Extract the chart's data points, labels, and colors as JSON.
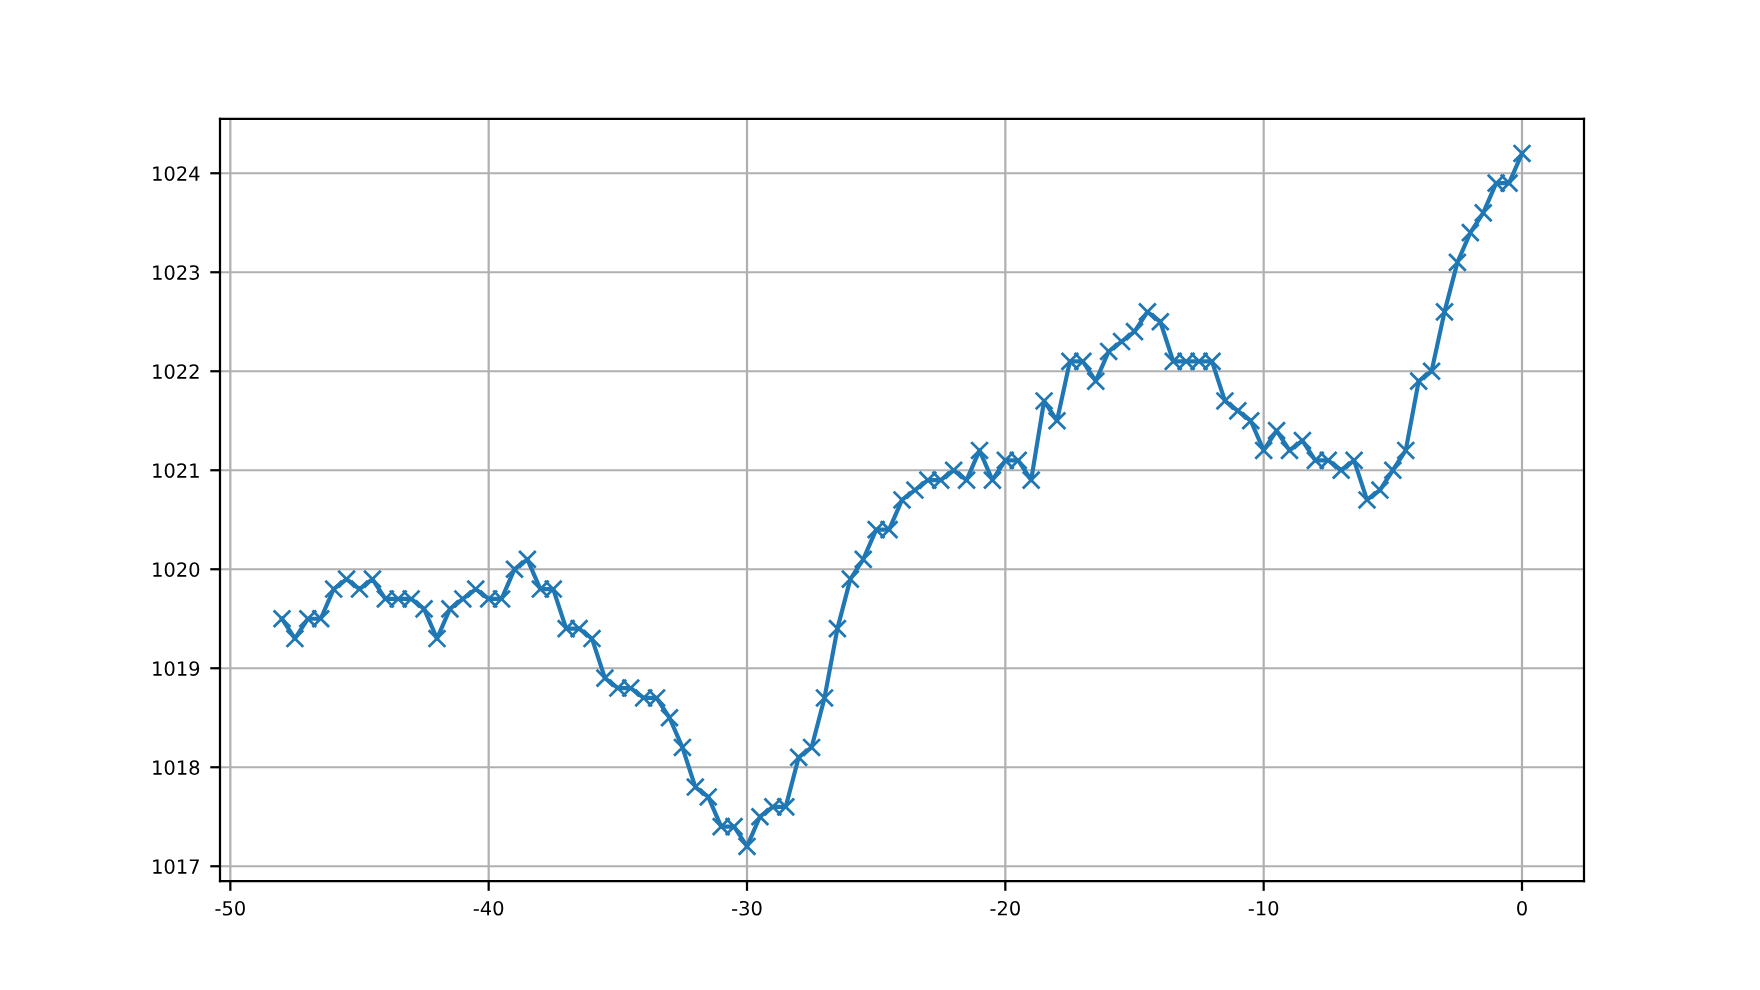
{
  "chart_data": {
    "type": "line",
    "marker": "cross",
    "grid": true,
    "x": [
      -48,
      -47.5,
      -47,
      -46.5,
      -46,
      -45.5,
      -45,
      -44.5,
      -44,
      -43.5,
      -43,
      -42.5,
      -42,
      -41.5,
      -41,
      -40.5,
      -40,
      -39.5,
      -39,
      -38.5,
      -38,
      -37.5,
      -37,
      -36.5,
      -36,
      -35.5,
      -35,
      -34.5,
      -34,
      -33.5,
      -33,
      -32.5,
      -32,
      -31.5,
      -31,
      -30.5,
      -30,
      -29.5,
      -29,
      -28.5,
      -28,
      -27.5,
      -27,
      -26.5,
      -26,
      -25.5,
      -25,
      -24.5,
      -24,
      -23.5,
      -23,
      -22.5,
      -22,
      -21.5,
      -21,
      -20.5,
      -20,
      -19.5,
      -19,
      -18.5,
      -18,
      -17.5,
      -17,
      -16.5,
      -16,
      -15.5,
      -15,
      -14.5,
      -14,
      -13.5,
      -13,
      -12.5,
      -12,
      -11.5,
      -11,
      -10.5,
      -10,
      -9.5,
      -9,
      -8.5,
      -8,
      -7.5,
      -7,
      -6.5,
      -6,
      -5.5,
      -5,
      -4.5,
      -4,
      -3.5,
      -3,
      -2.5,
      -2,
      -1.5,
      -1,
      -0.5,
      0
    ],
    "series": [
      {
        "color": "#1f77b4",
        "values": [
          1019.5,
          1019.3,
          1019.5,
          1019.5,
          1019.8,
          1019.9,
          1019.8,
          1019.9,
          1019.7,
          1019.7,
          1019.7,
          1019.6,
          1019.3,
          1019.6,
          1019.7,
          1019.8,
          1019.7,
          1019.7,
          1020.0,
          1020.1,
          1019.8,
          1019.8,
          1019.4,
          1019.4,
          1019.3,
          1018.9,
          1018.8,
          1018.8,
          1018.7,
          1018.7,
          1018.5,
          1018.2,
          1017.8,
          1017.7,
          1017.4,
          1017.4,
          1017.2,
          1017.5,
          1017.6,
          1017.6,
          1018.1,
          1018.2,
          1018.7,
          1019.4,
          1019.9,
          1020.1,
          1020.4,
          1020.4,
          1020.7,
          1020.8,
          1020.9,
          1020.9,
          1021.0,
          1020.9,
          1021.2,
          1020.9,
          1021.1,
          1021.1,
          1020.9,
          1021.7,
          1021.5,
          1022.1,
          1022.1,
          1021.9,
          1022.2,
          1022.3,
          1022.4,
          1022.6,
          1022.5,
          1022.1,
          1022.1,
          1022.1,
          1022.1,
          1021.7,
          1021.6,
          1021.5,
          1021.2,
          1021.4,
          1021.2,
          1021.3,
          1021.1,
          1021.1,
          1021.0,
          1021.1,
          1020.7,
          1020.8,
          1021.0,
          1021.2,
          1021.9,
          1022.0,
          1022.6,
          1023.1,
          1023.4,
          1023.6,
          1023.9,
          1023.9,
          1024.2
        ]
      }
    ],
    "xlim": [
      -50.4,
      2.4
    ],
    "xticks": [
      -50,
      -40,
      -30,
      -20,
      -10,
      0
    ],
    "ylim": [
      1016.85,
      1024.55
    ],
    "yticks": [
      1017,
      1018,
      1019,
      1020,
      1021,
      1022,
      1023,
      1024
    ]
  }
}
